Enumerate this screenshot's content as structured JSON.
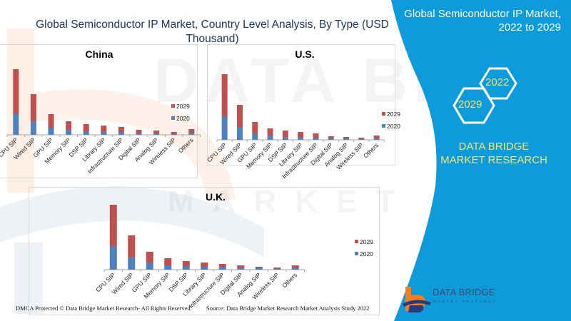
{
  "header": {
    "title": "Global Semiconductor IP Market, Country Level Analysis, By Type (USD Thousand)"
  },
  "side_panel": {
    "title": "Global Semiconductor IP Market, 2022 to 2029",
    "hex_years": [
      "2022",
      "2029"
    ],
    "brand": "DATA BRIDGE MARKET RESEARCH",
    "colors": {
      "panel": "#0e9bdc",
      "accent_text": "#f4e36a"
    }
  },
  "logo": {
    "name": "DATA BRIDGE",
    "sub": "MARKET RESEARCH"
  },
  "footer": {
    "copyright": "DMCA Protected © Data Bridge Market Research- All Rights Reserved.",
    "source": "Source: Data Bridge Market Research Market Analysis Study 2022"
  },
  "watermark": {
    "line1": "DATA BRIDGE",
    "line2": "MARKET RESEARCH"
  },
  "chart_data": [
    {
      "type": "bar",
      "stacked": true,
      "title": "China",
      "xlabel": "",
      "ylabel": "",
      "y_axis_shown": false,
      "units": "relative (no y-axis scale shown)",
      "categories": [
        "CPU SIP",
        "Wired SIP",
        "GPU SIP",
        "Memory SIP",
        "DSP SIP",
        "Library SIP",
        "Infrastructure SIP",
        "Digital SIP",
        "Analog SIP",
        "Wireless SIP",
        "Others"
      ],
      "series": [
        {
          "name": "2020",
          "color": "#4f81bd",
          "values": [
            29,
            19,
            10,
            7,
            5,
            4,
            4,
            2,
            2,
            1.5,
            3
          ]
        },
        {
          "name": "2029",
          "color": "#c0504d",
          "values": [
            63,
            38,
            19,
            12,
            10,
            9,
            7,
            5,
            4,
            2.5,
            5
          ]
        }
      ],
      "legend": {
        "position": "right",
        "entries": [
          "2029",
          "2020"
        ]
      },
      "ylim": [
        0,
        95
      ]
    },
    {
      "type": "bar",
      "stacked": true,
      "title": "U.S.",
      "xlabel": "",
      "ylabel": "",
      "y_axis_shown": false,
      "units": "relative (no y-axis scale shown)",
      "categories": [
        "CPU SIP",
        "Wired SIP",
        "GPU SIP",
        "Memory SIP",
        "DSP SIP",
        "Library SIP",
        "Infrastructure SIP",
        "Digital SIP",
        "Analog SIP",
        "Wireless SIP",
        "Others"
      ],
      "series": [
        {
          "name": "2020",
          "color": "#4f81bd",
          "values": [
            33,
            18,
            9,
            6,
            4,
            4,
            3,
            2,
            2,
            1,
            2
          ]
        },
        {
          "name": "2029",
          "color": "#c0504d",
          "values": [
            59,
            31,
            16,
            10,
            9,
            7,
            6,
            3,
            2,
            2,
            4
          ]
        }
      ],
      "legend": {
        "position": "right",
        "entries": [
          "2029",
          "2020"
        ]
      },
      "ylim": [
        0,
        95
      ]
    },
    {
      "type": "bar",
      "stacked": true,
      "title": "U.K.",
      "xlabel": "",
      "ylabel": "",
      "y_axis_shown": false,
      "units": "relative (no y-axis scale shown)",
      "categories": [
        "CPU SIP",
        "Wired SIP",
        "GPU SIP",
        "Memory SIP",
        "DSP SIP",
        "Library SIP",
        "Infrastructure SIP",
        "Digital SIP",
        "Analog SIP",
        "Wireless SIP",
        "Others"
      ],
      "series": [
        {
          "name": "2020",
          "color": "#4f81bd",
          "values": [
            33,
            18,
            10,
            6,
            5,
            4,
            4,
            2,
            2,
            1,
            2
          ]
        },
        {
          "name": "2029",
          "color": "#c0504d",
          "values": [
            58,
            30,
            15,
            10,
            7,
            6,
            4,
            4,
            2,
            2,
            4
          ]
        }
      ],
      "legend": {
        "position": "right",
        "entries": [
          "2029",
          "2020"
        ]
      },
      "ylim": [
        0,
        95
      ]
    }
  ]
}
